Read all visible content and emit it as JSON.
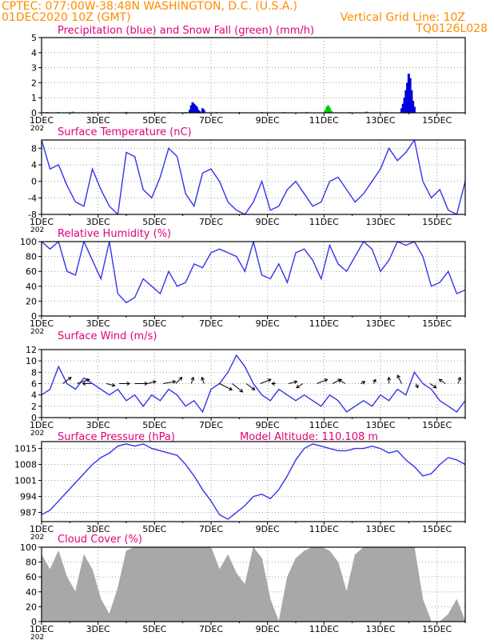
{
  "header": {
    "line1": "CPTEC:   077:00W-38:48N   WASHINGTON, D.C. (U.S.A.)",
    "line2": "01DEC2020  10Z (GMT)",
    "grid_note": "Vertical Grid Line: 10Z",
    "code": "TQ0126L028"
  },
  "colors": {
    "title": "#e0007a",
    "header": "#ff8c00",
    "line": "#3333ee",
    "precip": "#0000dd",
    "snow": "#00cc00",
    "cloud": "#a8a8a8"
  },
  "x_ticks": [
    "1DEC",
    "3DEC",
    "5DEC",
    "7DEC",
    "9DEC",
    "11DEC",
    "13DEC",
    "15DEC"
  ],
  "year_fragment": "202",
  "chart_data": [
    {
      "id": "precip",
      "type": "bar",
      "title": "Precipitation (blue) and Snow Fall (green) (mm/h)",
      "ylim": [
        0,
        5
      ],
      "yticks": [
        "0",
        "1",
        "2",
        "3",
        "4",
        "5"
      ],
      "xlim_days": [
        1,
        16
      ],
      "series": [
        {
          "name": "precipitation",
          "color": "#0000dd",
          "x": [
            6.25,
            6.3,
            6.35,
            6.4,
            6.45,
            6.5,
            6.55,
            6.6,
            6.7,
            6.75,
            13.75,
            13.8,
            13.85,
            13.9,
            13.95,
            14.0,
            14.05,
            14.1,
            14.15,
            14.2
          ],
          "values": [
            0.2,
            0.5,
            0.7,
            0.6,
            0.5,
            0.4,
            0.2,
            0.1,
            0.3,
            0.2,
            0.3,
            0.6,
            1.0,
            1.5,
            2.0,
            2.6,
            2.3,
            1.5,
            0.8,
            0.4
          ]
        },
        {
          "name": "snow",
          "color": "#00cc00",
          "x": [
            1.2,
            1.6,
            2.1,
            2.8,
            3.4,
            4.0,
            4.8,
            5.5,
            6.1,
            7.2,
            8.0,
            8.8,
            9.6,
            10.4,
            11.05,
            11.1,
            11.15,
            11.2,
            11.25,
            11.9,
            12.5,
            13.2
          ],
          "values": [
            0.05,
            0.05,
            0.08,
            0.05,
            0.05,
            0.06,
            0.05,
            0.05,
            0.05,
            0.05,
            0.05,
            0.05,
            0.05,
            0.06,
            0.2,
            0.4,
            0.5,
            0.35,
            0.15,
            0.05,
            0.08,
            0.05
          ]
        }
      ]
    },
    {
      "id": "temp",
      "type": "line",
      "title": "Surface Temperature (nC)",
      "ylim": [
        -8,
        10
      ],
      "yticks": [
        "-8",
        "-4",
        "0",
        "4",
        "8"
      ],
      "xlim_days": [
        1,
        16
      ],
      "x": [
        1.0,
        1.3,
        1.6,
        1.9,
        2.2,
        2.5,
        2.8,
        3.1,
        3.4,
        3.7,
        4.0,
        4.3,
        4.6,
        4.9,
        5.2,
        5.5,
        5.8,
        6.1,
        6.4,
        6.7,
        7.0,
        7.3,
        7.6,
        7.9,
        8.2,
        8.5,
        8.8,
        9.1,
        9.4,
        9.7,
        10.0,
        10.3,
        10.6,
        10.9,
        11.2,
        11.5,
        11.8,
        12.1,
        12.4,
        12.7,
        13.0,
        13.3,
        13.6,
        13.9,
        14.2,
        14.5,
        14.8,
        15.1,
        15.4,
        15.7,
        16.0
      ],
      "values": [
        10,
        3,
        4,
        -1,
        -5,
        -6,
        3,
        -2,
        -6,
        -8,
        7,
        6,
        -2,
        -4,
        1,
        8,
        6,
        -3,
        -6,
        2,
        3,
        0,
        -5,
        -7,
        -8,
        -5,
        0,
        -7,
        -6,
        -2,
        0,
        -3,
        -6,
        -5,
        0,
        1,
        -2,
        -5,
        -3,
        0,
        3,
        8,
        5,
        7,
        10,
        0,
        -4,
        -2,
        -7,
        -8,
        0
      ]
    },
    {
      "id": "rh",
      "type": "line",
      "title": "Relative Humidity (%)",
      "ylim": [
        0,
        100
      ],
      "yticks": [
        "0",
        "20",
        "40",
        "60",
        "80",
        "100"
      ],
      "xlim_days": [
        1,
        16
      ],
      "x": [
        1.0,
        1.3,
        1.6,
        1.9,
        2.2,
        2.5,
        2.8,
        3.1,
        3.4,
        3.7,
        4.0,
        4.3,
        4.6,
        4.9,
        5.2,
        5.5,
        5.8,
        6.1,
        6.4,
        6.7,
        7.0,
        7.3,
        7.6,
        7.9,
        8.2,
        8.5,
        8.8,
        9.1,
        9.4,
        9.7,
        10.0,
        10.3,
        10.6,
        10.9,
        11.2,
        11.5,
        11.8,
        12.1,
        12.4,
        12.7,
        13.0,
        13.3,
        13.6,
        13.9,
        14.2,
        14.5,
        14.8,
        15.1,
        15.4,
        15.7,
        16.0
      ],
      "values": [
        100,
        90,
        100,
        60,
        55,
        100,
        75,
        50,
        100,
        30,
        18,
        25,
        50,
        40,
        30,
        60,
        40,
        45,
        70,
        65,
        85,
        90,
        85,
        80,
        60,
        100,
        55,
        50,
        70,
        45,
        85,
        90,
        75,
        50,
        95,
        70,
        60,
        80,
        100,
        90,
        60,
        75,
        100,
        95,
        100,
        80,
        40,
        45,
        60,
        30,
        35
      ]
    },
    {
      "id": "wind",
      "type": "line",
      "title": "Surface Wind (m/s)",
      "ylim": [
        0,
        12
      ],
      "yticks": [
        "0",
        "2",
        "4",
        "6",
        "8",
        "10",
        "12"
      ],
      "xlim_days": [
        1,
        16
      ],
      "x": [
        1.0,
        1.3,
        1.6,
        1.9,
        2.2,
        2.5,
        2.8,
        3.1,
        3.4,
        3.7,
        4.0,
        4.3,
        4.6,
        4.9,
        5.2,
        5.5,
        5.8,
        6.1,
        6.4,
        6.7,
        7.0,
        7.3,
        7.6,
        7.9,
        8.2,
        8.5,
        8.8,
        9.1,
        9.4,
        9.7,
        10.0,
        10.3,
        10.6,
        10.9,
        11.2,
        11.5,
        11.8,
        12.1,
        12.4,
        12.7,
        13.0,
        13.3,
        13.6,
        13.9,
        14.2,
        14.5,
        14.8,
        15.1,
        15.4,
        15.7,
        16.0
      ],
      "values": [
        4,
        5,
        9,
        6,
        5,
        7,
        6,
        5,
        4,
        5,
        3,
        4,
        2,
        4,
        3,
        5,
        4,
        2,
        3,
        1,
        5,
        6,
        8,
        11,
        9,
        6,
        4,
        3,
        5,
        4,
        3,
        4,
        3,
        2,
        4,
        3,
        1,
        2,
        3,
        2,
        4,
        3,
        5,
        4,
        8,
        6,
        5,
        3,
        2,
        1,
        3
      ],
      "vectors": {
        "x": [
          1.75,
          2.25,
          2.75,
          3.3,
          3.75,
          4.3,
          4.75,
          5.3,
          5.75,
          6.3,
          6.75,
          7.3,
          7.75,
          8.25,
          8.75,
          9.3,
          9.75,
          10.25,
          10.75,
          11.3,
          11.75,
          12.3,
          12.75,
          13.3,
          13.75,
          14.25,
          14.75,
          15.3,
          15.75
        ],
        "u": [
          4,
          6,
          -4,
          4,
          5,
          6,
          4,
          6,
          3,
          1,
          -1,
          6,
          5,
          4,
          5,
          -2,
          4,
          -3,
          5,
          4,
          -3,
          2,
          1,
          0,
          -2,
          1,
          3,
          -3,
          1
        ],
        "v": [
          3,
          2,
          0,
          -1,
          0,
          0,
          1,
          1,
          3,
          3,
          3,
          -3,
          -4,
          -3,
          2,
          0,
          1,
          -2,
          2,
          2,
          2,
          1,
          2,
          3,
          4,
          -2,
          -2,
          2,
          3
        ]
      }
    },
    {
      "id": "pres",
      "type": "line",
      "title": "Surface Pressure (hPa)",
      "subtitle": "Model Altitude: 110.108  m",
      "ylim": [
        983,
        1018
      ],
      "yticks": [
        "987",
        "994",
        "1001",
        "1008",
        "1015"
      ],
      "xlim_days": [
        1,
        16
      ],
      "x": [
        1.0,
        1.3,
        1.6,
        1.9,
        2.2,
        2.5,
        2.8,
        3.1,
        3.4,
        3.7,
        4.0,
        4.3,
        4.6,
        4.9,
        5.2,
        5.5,
        5.8,
        6.1,
        6.4,
        6.7,
        7.0,
        7.3,
        7.6,
        7.9,
        8.2,
        8.5,
        8.8,
        9.1,
        9.4,
        9.7,
        10.0,
        10.3,
        10.6,
        10.9,
        11.2,
        11.5,
        11.8,
        12.1,
        12.4,
        12.7,
        13.0,
        13.3,
        13.6,
        13.9,
        14.2,
        14.5,
        14.8,
        15.1,
        15.4,
        15.7,
        16.0
      ],
      "values": [
        986,
        988,
        992,
        996,
        1000,
        1004,
        1008,
        1011,
        1013,
        1016,
        1017,
        1016,
        1017,
        1015,
        1014,
        1013,
        1012,
        1008,
        1003,
        997,
        992,
        986,
        984,
        987,
        990,
        994,
        995,
        993,
        997,
        1003,
        1010,
        1015,
        1017,
        1016,
        1015,
        1014,
        1014,
        1015,
        1015,
        1016,
        1015,
        1013,
        1014,
        1010,
        1007,
        1003,
        1004,
        1008,
        1011,
        1010,
        1008
      ]
    },
    {
      "id": "cloud",
      "type": "area",
      "title": "Cloud Cover (%)",
      "ylim": [
        0,
        100
      ],
      "yticks": [
        "0",
        "20",
        "40",
        "60",
        "80",
        "100"
      ],
      "xlim_days": [
        1,
        16
      ],
      "x": [
        1.0,
        1.3,
        1.6,
        1.9,
        2.2,
        2.5,
        2.8,
        3.1,
        3.4,
        3.7,
        4.0,
        4.3,
        4.6,
        4.9,
        5.2,
        5.5,
        5.8,
        6.1,
        6.4,
        6.7,
        7.0,
        7.3,
        7.6,
        7.9,
        8.2,
        8.5,
        8.8,
        9.1,
        9.4,
        9.7,
        10.0,
        10.3,
        10.6,
        10.9,
        11.2,
        11.5,
        11.8,
        12.1,
        12.4,
        12.7,
        13.0,
        13.3,
        13.6,
        13.9,
        14.2,
        14.5,
        14.8,
        15.1,
        15.4,
        15.7,
        16.0
      ],
      "values": [
        90,
        70,
        95,
        60,
        40,
        90,
        70,
        30,
        10,
        45,
        95,
        100,
        100,
        100,
        100,
        100,
        100,
        100,
        100,
        100,
        100,
        70,
        90,
        65,
        50,
        100,
        85,
        30,
        0,
        60,
        85,
        95,
        100,
        100,
        95,
        80,
        40,
        90,
        100,
        100,
        100,
        100,
        100,
        100,
        100,
        30,
        0,
        0,
        10,
        30,
        0
      ]
    }
  ]
}
